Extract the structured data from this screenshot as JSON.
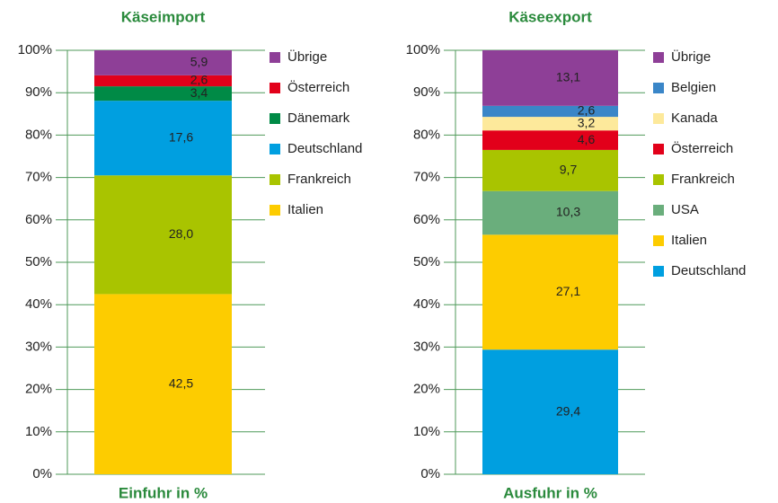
{
  "chart_data": [
    {
      "type": "stacked-bar",
      "title": "Käseimport",
      "x_label": "Einfuhr in %",
      "ylim": [
        0,
        100
      ],
      "yticks": [
        {
          "value": 0,
          "label": "0%"
        },
        {
          "value": 10,
          "label": "10%"
        },
        {
          "value": 20,
          "label": "20%"
        },
        {
          "value": 30,
          "label": "30%"
        },
        {
          "value": 40,
          "label": "40%"
        },
        {
          "value": 50,
          "label": "50%"
        },
        {
          "value": 60,
          "label": "60%"
        },
        {
          "value": 70,
          "label": "70%"
        },
        {
          "value": 80,
          "label": "80%"
        },
        {
          "value": 90,
          "label": "90%"
        },
        {
          "value": 100,
          "label": "100%"
        }
      ],
      "grid": true,
      "series": [
        {
          "name": "Italien",
          "color": "#fdcc00",
          "values": [
            42.5
          ],
          "value_labels": [
            "42,5"
          ]
        },
        {
          "name": "Frankreich",
          "color": "#a9c400",
          "values": [
            28.0
          ],
          "value_labels": [
            "28,0"
          ]
        },
        {
          "name": "Deutschland",
          "color": "#009fe0",
          "values": [
            17.6
          ],
          "value_labels": [
            "17,6"
          ]
        },
        {
          "name": "Dänemark",
          "color": "#008a46",
          "values": [
            3.4
          ],
          "value_labels": [
            "3,4"
          ]
        },
        {
          "name": "Österreich",
          "color": "#e2001a",
          "values": [
            2.6
          ],
          "value_labels": [
            "2,6"
          ]
        },
        {
          "name": "Übrige",
          "color": "#8e3f97",
          "values": [
            5.9
          ],
          "value_labels": [
            "5,9"
          ]
        }
      ]
    },
    {
      "type": "stacked-bar",
      "title": "Käseexport",
      "x_label": "Ausfuhr in %",
      "ylim": [
        0,
        100
      ],
      "yticks": [
        {
          "value": 0,
          "label": "0%"
        },
        {
          "value": 10,
          "label": "10%"
        },
        {
          "value": 20,
          "label": "20%"
        },
        {
          "value": 30,
          "label": "30%"
        },
        {
          "value": 40,
          "label": "40%"
        },
        {
          "value": 50,
          "label": "50%"
        },
        {
          "value": 60,
          "label": "60%"
        },
        {
          "value": 70,
          "label": "70%"
        },
        {
          "value": 80,
          "label": "80%"
        },
        {
          "value": 90,
          "label": "90%"
        },
        {
          "value": 100,
          "label": "100%"
        }
      ],
      "grid": true,
      "series": [
        {
          "name": "Deutschland",
          "color": "#009fe0",
          "values": [
            29.4
          ],
          "value_labels": [
            "29,4"
          ]
        },
        {
          "name": "Italien",
          "color": "#fdcc00",
          "values": [
            27.1
          ],
          "value_labels": [
            "27,1"
          ]
        },
        {
          "name": "USA",
          "color": "#6aae7c",
          "values": [
            10.3
          ],
          "value_labels": [
            "10,3"
          ]
        },
        {
          "name": "Frankreich",
          "color": "#a9c400",
          "values": [
            9.7
          ],
          "value_labels": [
            "9,7"
          ]
        },
        {
          "name": "Österreich",
          "color": "#e2001a",
          "values": [
            4.6
          ],
          "value_labels": [
            "4,6"
          ]
        },
        {
          "name": "Kanada",
          "color": "#fde99b",
          "values": [
            3.2
          ],
          "value_labels": [
            "3,2"
          ]
        },
        {
          "name": "Belgien",
          "color": "#3a86c8",
          "values": [
            2.6
          ],
          "value_labels": [
            "2,6"
          ]
        },
        {
          "name": "Übrige",
          "color": "#8e3f97",
          "values": [
            13.1
          ],
          "value_labels": [
            "13,1"
          ]
        }
      ]
    }
  ]
}
